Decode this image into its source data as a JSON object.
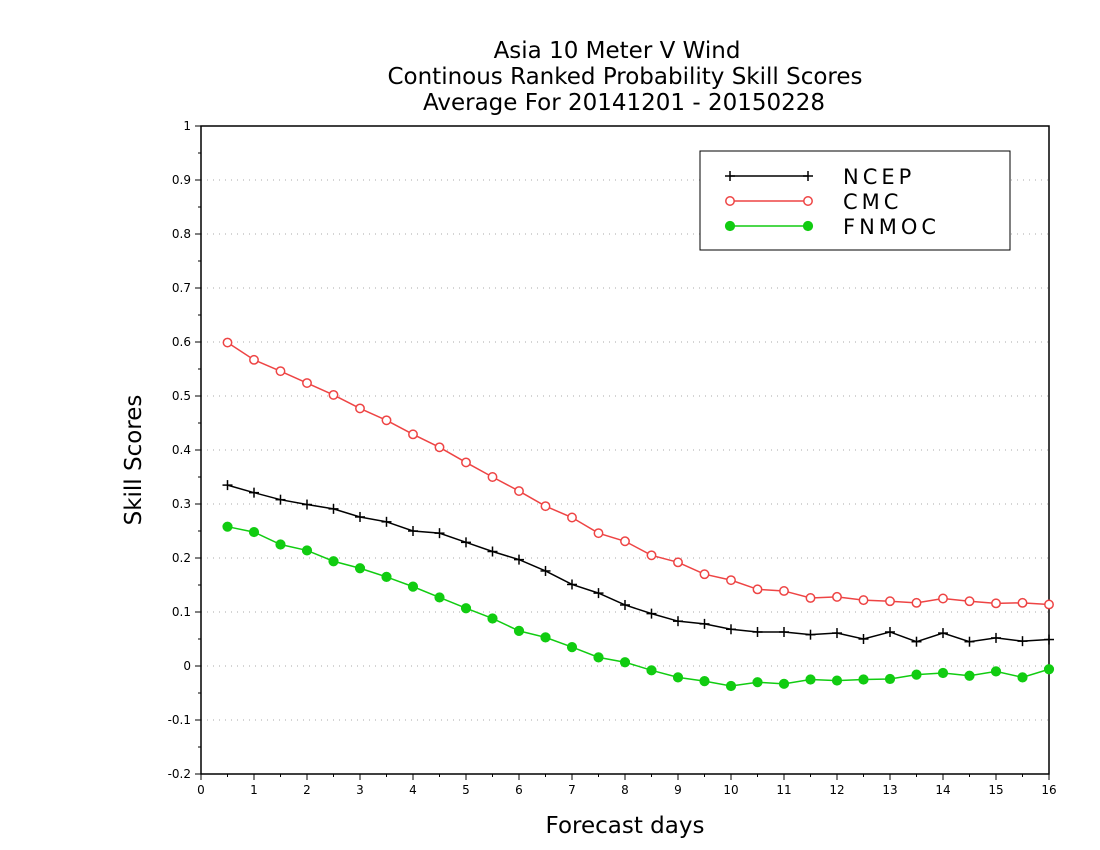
{
  "chart_data": {
    "type": "line",
    "title": [
      "Asia 10 Meter V Wind",
      "Continous Ranked Probability Skill Scores",
      "Average For 20141201 - 20150228"
    ],
    "xlabel": "Forecast days",
    "ylabel": "Skill Scores",
    "xlim": [
      0,
      16
    ],
    "ylim": [
      -0.2,
      1
    ],
    "xticks": [
      "0",
      "1",
      "2",
      "3",
      "4",
      "5",
      "6",
      "7",
      "8",
      "9",
      "10",
      "11",
      "12",
      "13",
      "14",
      "15",
      "16"
    ],
    "yticks": [
      "-0.2",
      "-0.1",
      "0",
      "0.1",
      "0.2",
      "0.3",
      "0.4",
      "0.5",
      "0.6",
      "0.7",
      "0.8",
      "0.9",
      "1"
    ],
    "grid": "horizontal dotted",
    "legend_position": "top-right",
    "x": [
      0.5,
      1,
      1.5,
      2,
      2.5,
      3,
      3.5,
      4,
      4.5,
      5,
      5.5,
      6,
      6.5,
      7,
      7.5,
      8,
      8.5,
      9,
      9.5,
      10,
      10.5,
      11,
      11.5,
      12,
      12.5,
      13,
      13.5,
      14,
      14.5,
      15,
      15.5,
      16
    ],
    "series": [
      {
        "name": "NCEP",
        "color": "#000000",
        "marker": "plus",
        "values": [
          0.335,
          0.321,
          0.308,
          0.299,
          0.291,
          0.276,
          0.267,
          0.25,
          0.246,
          0.229,
          0.212,
          0.197,
          0.176,
          0.151,
          0.135,
          0.113,
          0.097,
          0.083,
          0.078,
          0.068,
          0.063,
          0.063,
          0.058,
          0.061,
          0.05,
          0.063,
          0.045,
          0.061,
          0.045,
          0.052,
          0.046,
          0.049
        ]
      },
      {
        "name": "CMC",
        "color": "#ee4444",
        "marker": "open-circle",
        "values": [
          0.599,
          0.567,
          0.546,
          0.524,
          0.502,
          0.477,
          0.455,
          0.429,
          0.405,
          0.377,
          0.35,
          0.324,
          0.296,
          0.275,
          0.246,
          0.231,
          0.205,
          0.192,
          0.17,
          0.159,
          0.142,
          0.139,
          0.126,
          0.128,
          0.122,
          0.12,
          0.117,
          0.125,
          0.12,
          0.116,
          0.117,
          0.114
        ]
      },
      {
        "name": "FNMOC",
        "color": "#11cc11",
        "marker": "filled-circle",
        "values": [
          0.258,
          0.248,
          0.225,
          0.214,
          0.194,
          0.181,
          0.165,
          0.147,
          0.127,
          0.107,
          0.088,
          0.065,
          0.053,
          0.035,
          0.016,
          0.007,
          -0.008,
          -0.021,
          -0.028,
          -0.037,
          -0.03,
          -0.033,
          -0.025,
          -0.027,
          -0.025,
          -0.024,
          -0.016,
          -0.013,
          -0.018,
          -0.01,
          -0.021,
          -0.006
        ]
      }
    ]
  }
}
